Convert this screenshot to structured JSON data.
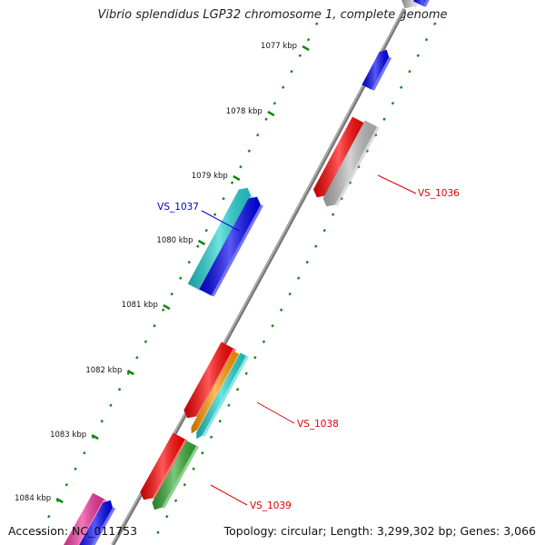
{
  "title": "Vibrio splendidus LGP32 chromosome 1, complete genome",
  "footer": {
    "accession": "Accession: NC_011753",
    "summary": "Topology: circular; Length: 3,299,302 bp; Genes: 3,066"
  },
  "ticks": [
    "1077 kbp",
    "1078 kbp",
    "1079 kbp",
    "1080 kbp",
    "1081 kbp",
    "1082 kbp",
    "1083 kbp",
    "1084 kbp"
  ],
  "genes": [
    {
      "label": "VS_1036",
      "color": "#dd0000",
      "strand": "reverse"
    },
    {
      "label": "VS_1037",
      "color": "#0000cc",
      "strand": "forward"
    },
    {
      "label": "VS_1038",
      "color": "#dd0000",
      "strand": "reverse"
    },
    {
      "label": "VS_1039",
      "color": "#dd0000",
      "strand": "reverse"
    }
  ],
  "colors": {
    "cds": "#ff0000",
    "forward": "#0000ee",
    "grey": "#bbbbbb",
    "cyan": "#22d3d3",
    "orange": "#ff9900",
    "green": "#33aa33",
    "magenta": "#ee3399",
    "backbone": "#777777",
    "ticks": "#118811"
  }
}
